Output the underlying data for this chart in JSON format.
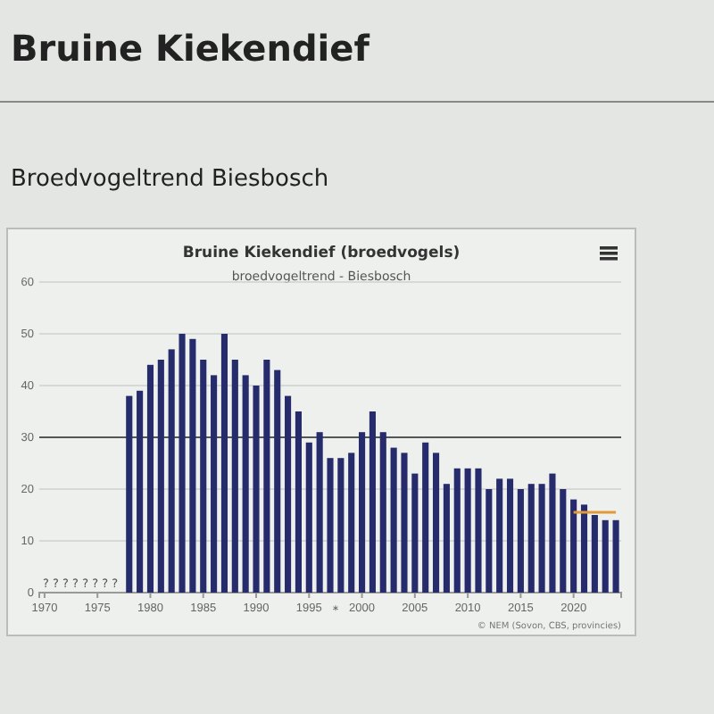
{
  "chart_data": {
    "type": "bar",
    "title": "Bruine Kiekendief (broedvogels)",
    "subtitle": "broedvogeltrend - Biesbosch",
    "x": [
      1978,
      1979,
      1980,
      1981,
      1982,
      1983,
      1984,
      1985,
      1986,
      1987,
      1988,
      1989,
      1990,
      1991,
      1992,
      1993,
      1994,
      1995,
      1996,
      1997,
      1998,
      1999,
      2000,
      2001,
      2002,
      2003,
      2004,
      2005,
      2006,
      2007,
      2008,
      2009,
      2010,
      2011,
      2012,
      2013,
      2014,
      2015,
      2016,
      2017,
      2018,
      2019,
      2020,
      2021,
      2022,
      2023,
      2024
    ],
    "series": [
      {
        "color": "#262b6b",
        "values": [
          38,
          39,
          44,
          45,
          47,
          50,
          49,
          45,
          42,
          50,
          45,
          42,
          40,
          45,
          43,
          38,
          35,
          29,
          31,
          26,
          26,
          27,
          31,
          35,
          31,
          28,
          27,
          23,
          29,
          27,
          21,
          24,
          24,
          24,
          20,
          22,
          22,
          20,
          21,
          21,
          23,
          20,
          18,
          17,
          15,
          14,
          14
        ]
      },
      {
        "type": "line",
        "color": "#e09a3a",
        "x": [
          2020,
          2024
        ],
        "values": [
          15.5,
          15.5
        ]
      }
    ],
    "xlim": [
      1969.5,
      2024.5
    ],
    "xticks": [
      1970,
      1975,
      1980,
      1985,
      1990,
      1995,
      2000,
      2005,
      2010,
      2015,
      2020
    ],
    "ylim": [
      0,
      60
    ],
    "yticks": [
      0,
      10,
      20,
      30,
      40,
      50,
      60
    ],
    "grid": "y",
    "ref_lines": [
      {
        "axis": "y",
        "value": 30,
        "color": "#555555"
      }
    ],
    "annotations": [
      "Bruine Kiekendief",
      "Broedvogeltrend Biesbosch",
      "© NEM (Sovon, CBS, provincies)",
      "? ? ? ? ? ? ? ?",
      "*"
    ]
  }
}
